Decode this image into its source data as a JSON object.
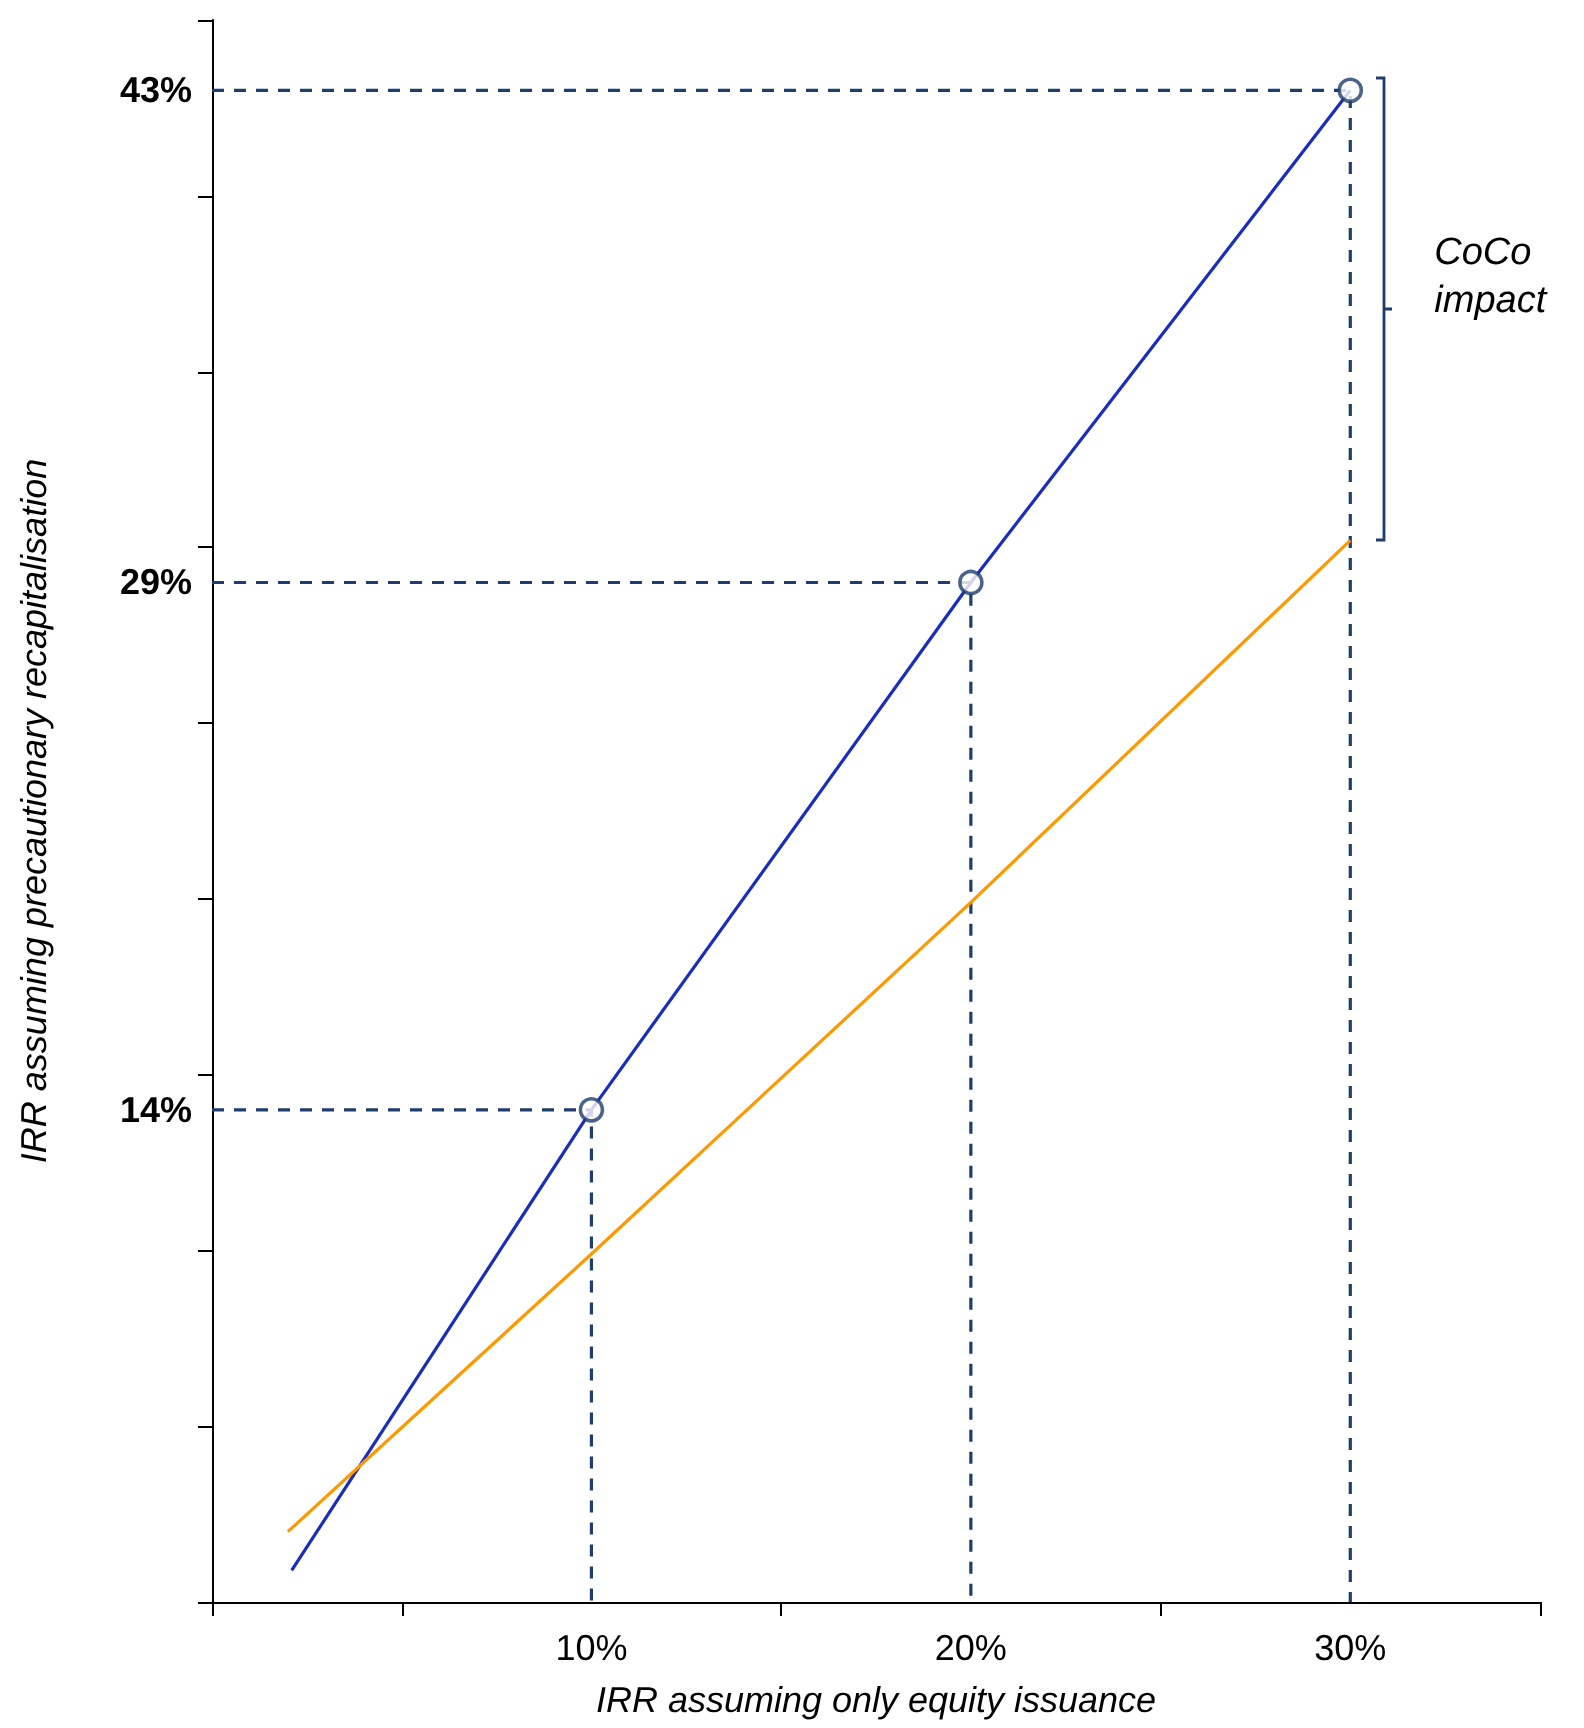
{
  "chart_data": {
    "type": "line",
    "xlabel": "IRR assuming only equity issuance",
    "ylabel": "IRR assuming precautionary recapitalisation",
    "series": [
      {
        "color": "#1a2dbf",
        "x": [
          2.1,
          10,
          20,
          30
        ],
        "values": [
          0.9,
          14,
          29,
          43
        ]
      },
      {
        "color": "#ff9900",
        "x": [
          2,
          10,
          20,
          30
        ],
        "values": [
          2,
          9.9,
          19.9,
          30.2
        ]
      },
      {
        "color": "#1f3d6e",
        "x": [
          0,
          10,
          10
        ],
        "values": [
          14,
          14,
          0
        ],
        "line_style": "dashed"
      },
      {
        "color": "#1f3d6e",
        "x": [
          0,
          20,
          20
        ],
        "values": [
          29,
          29,
          0
        ],
        "line_style": "dashed"
      },
      {
        "color": "#1f3d6e",
        "x": [
          0,
          30,
          30
        ],
        "values": [
          43,
          43,
          0
        ],
        "line_style": "dashed"
      },
      {
        "type": "scatter",
        "color": "#1f3d6e",
        "x": [
          10,
          20,
          30
        ],
        "values": [
          14,
          29,
          43
        ],
        "marker": "circle"
      }
    ],
    "xlim": [
      0,
      35
    ],
    "xticks": [
      {
        "value": 0,
        "label": null
      },
      {
        "value": 5,
        "label": null
      },
      {
        "value": 10,
        "label": "10%"
      },
      {
        "value": 15,
        "label": null
      },
      {
        "value": 20,
        "label": "20%"
      },
      {
        "value": 25,
        "label": null
      },
      {
        "value": 30,
        "label": "30%"
      },
      {
        "value": 35,
        "label": null
      }
    ],
    "ylim": [
      0,
      45
    ],
    "yticks": [
      {
        "value": 0,
        "label": null
      },
      {
        "value": 5,
        "label": null
      },
      {
        "value": 10,
        "label": null
      },
      {
        "value": 14,
        "label": "14%"
      },
      {
        "value": 15,
        "label": null
      },
      {
        "value": 20,
        "label": null
      },
      {
        "value": 25,
        "label": null
      },
      {
        "value": 29,
        "label": "29%"
      },
      {
        "value": 30,
        "label": null
      },
      {
        "value": 35,
        "label": null
      },
      {
        "value": 40,
        "label": null
      },
      {
        "value": 43,
        "label": "43%"
      },
      {
        "value": 45,
        "label": null
      }
    ],
    "annotations": [
      "CoCo impact"
    ],
    "marker": "none",
    "line_style": "solid"
  }
}
